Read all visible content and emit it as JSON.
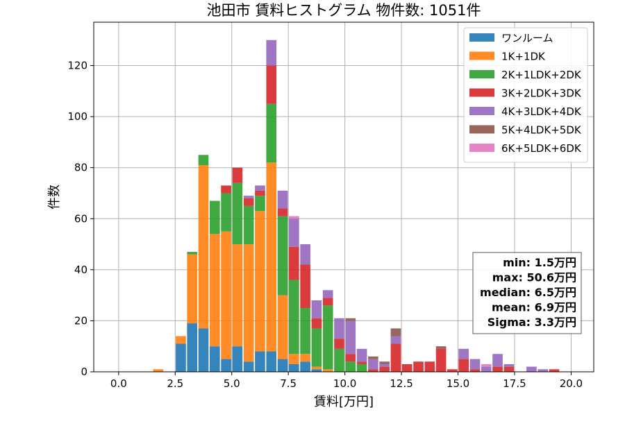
{
  "chart_data": {
    "type": "bar",
    "stacked": true,
    "title": "池田市 賃料ヒストグラム  物件数: 1051件",
    "xlabel": "賃料[万円]",
    "ylabel": "件数",
    "xlim": [
      -1.1,
      21.0
    ],
    "ylim": [
      0,
      137
    ],
    "xticks": [
      "0.0",
      "2.5",
      "5.0",
      "7.5",
      "10.0",
      "12.5",
      "15.0",
      "17.5",
      "20.0"
    ],
    "xtick_values": [
      0,
      2.5,
      5,
      7.5,
      10,
      12.5,
      15,
      17.5,
      20
    ],
    "yticks": [
      "0",
      "20",
      "40",
      "60",
      "80",
      "100",
      "120"
    ],
    "ytick_values": [
      0,
      20,
      40,
      60,
      80,
      100,
      120
    ],
    "grid": true,
    "legend_position": "top-right",
    "bin_width": 0.5,
    "bin_starts": [
      1.5,
      2.5,
      3.0,
      3.5,
      4.0,
      4.5,
      5.0,
      5.5,
      6.0,
      6.5,
      7.0,
      7.5,
      8.0,
      8.5,
      9.0,
      9.5,
      10.0,
      10.5,
      11.0,
      11.5,
      12.0,
      12.5,
      13.0,
      13.5,
      14.0,
      14.5,
      15.0,
      15.5,
      16.0,
      16.5,
      17.0,
      17.5,
      18.0,
      18.5,
      19.0
    ],
    "series": [
      {
        "name": "ワンルーム",
        "color": "#1f77b4",
        "values": [
          0,
          11,
          19,
          17,
          10,
          5,
          10,
          4,
          8,
          8,
          5,
          3,
          4,
          1,
          0,
          0,
          0,
          0,
          0,
          0,
          0,
          0,
          0,
          0,
          0,
          0,
          0,
          0,
          0,
          0,
          0,
          0,
          0,
          0,
          0
        ]
      },
      {
        "name": "1K+1DK",
        "color": "#ff7f0e",
        "values": [
          1,
          3,
          27,
          64,
          44,
          50,
          40,
          46,
          55,
          74,
          25,
          4,
          3,
          1,
          1,
          0,
          0,
          0,
          0,
          0,
          0,
          0,
          0,
          0,
          0,
          0,
          0,
          0,
          0,
          0,
          0,
          0,
          0,
          0,
          0
        ]
      },
      {
        "name": "2K+1LDK+2DK",
        "color": "#2ca02c",
        "values": [
          0,
          0,
          1,
          4,
          13,
          15,
          24,
          15,
          6,
          23,
          31,
          29,
          18,
          15,
          25,
          9,
          4,
          3,
          0,
          0,
          0,
          0,
          0,
          0,
          0,
          0,
          0,
          0,
          0,
          0,
          0,
          0,
          0,
          0,
          0
        ]
      },
      {
        "name": "3K+2LDK+3DK",
        "color": "#d62728",
        "values": [
          0,
          0,
          0,
          0,
          0,
          3,
          6,
          3,
          2,
          15,
          3,
          13,
          17,
          4,
          3,
          4,
          3,
          1,
          1,
          2,
          11,
          3,
          4,
          4,
          9,
          1,
          5,
          1,
          0,
          2,
          2,
          0,
          0,
          0,
          1
        ]
      },
      {
        "name": "4K+3LDK+4DK",
        "color": "#9467bd",
        "values": [
          0,
          0,
          0,
          0,
          0,
          0,
          0,
          1,
          2,
          10,
          7,
          11,
          8,
          7,
          3,
          8,
          13,
          5,
          4,
          1,
          3,
          0,
          0,
          0,
          0,
          0,
          4,
          4,
          2,
          5,
          1,
          0,
          2,
          1,
          0
        ]
      },
      {
        "name": "5K+4LDK+5DK",
        "color": "#8c564b",
        "values": [
          0,
          0,
          0,
          0,
          0,
          0,
          0,
          0,
          0,
          0,
          0,
          0,
          0,
          0,
          0,
          0,
          1,
          0,
          1,
          1,
          3,
          0,
          0,
          0,
          1,
          0,
          0,
          0,
          0,
          0,
          0,
          0,
          0,
          0,
          0
        ]
      },
      {
        "name": "6K+5LDK+6DK",
        "color": "#e377c2",
        "values": [
          0,
          0,
          0,
          0,
          0,
          0,
          0,
          0,
          0,
          0,
          0,
          1,
          0,
          0,
          0,
          0,
          0,
          0,
          0,
          0,
          0,
          0,
          0,
          0,
          0,
          0,
          0,
          0,
          1,
          0,
          0,
          0,
          0,
          0,
          0
        ]
      }
    ],
    "stats": [
      "min: 1.5万円",
      "max: 50.6万円",
      "median: 6.5万円",
      "mean: 6.9万円",
      "Sigma: 3.3万円"
    ]
  }
}
